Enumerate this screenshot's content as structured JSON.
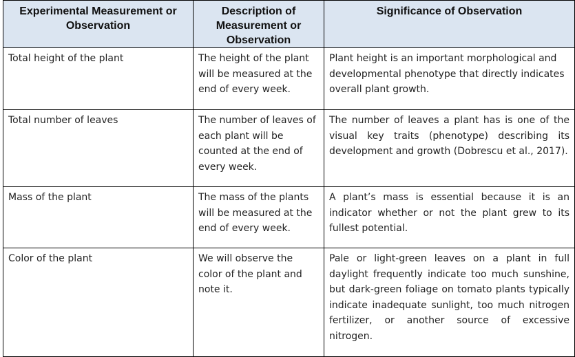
{
  "table": {
    "headers": [
      "Experimental Measurement or Observation",
      "Description of Measurement or Observation",
      "Significance of Observation"
    ],
    "rows": [
      {
        "measurement": "Total height of the plant",
        "description": "The height of the plant will be measured at the end of every week.",
        "significance": "Plant height is an important morphological and developmental phenotype that directly indicates overall plant growth."
      },
      {
        "measurement": "Total number of leaves",
        "description": "The number of leaves of each plant will be counted at the end of every week.",
        "significance": "The number of leaves a plant has is one of the visual key traits (phenotype) describing its development and growth (Dobrescu et al., 2017)."
      },
      {
        "measurement": "Mass of the plant",
        "description": "The mass of the plants will be measured at the end of every week.",
        "significance": "A plant’s mass is essential because it is an indicator whether or not the plant grew to its fullest potential."
      },
      {
        "measurement": "Color of the plant",
        "description": "We will observe the color of the plant and note it.",
        "significance": "Pale or light-green leaves on a plant in full daylight frequently indicate too much sunshine, but dark-green foliage on tomato plants typically indicate inadequate sunlight, too much nitrogen fertilizer, or another source of excessive nitrogen."
      }
    ]
  }
}
